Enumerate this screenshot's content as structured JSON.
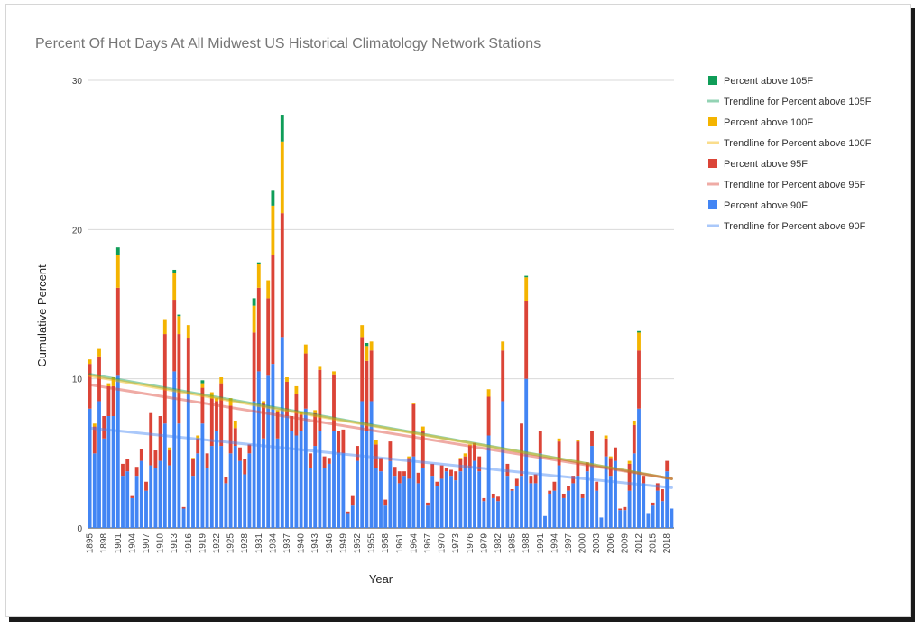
{
  "chart_data": {
    "type": "bar",
    "stacked": true,
    "title": "Percent Of Hot Days At All Midwest US Historical Climatology Network Stations",
    "xlabel": "Year",
    "ylabel": "Cumulative Percent",
    "ylim": [
      0,
      30
    ],
    "yticks": [
      0,
      10,
      20,
      30
    ],
    "grid": true,
    "legend_position": "right",
    "year_start": 1895,
    "year_end": 2019,
    "xtick_labels": [
      "1895",
      "1898",
      "1901",
      "1904",
      "1907",
      "1910",
      "1913",
      "1916",
      "1919",
      "1922",
      "1925",
      "1928",
      "1931",
      "1934",
      "1937",
      "1940",
      "1943",
      "1946",
      "1949",
      "1952",
      "1955",
      "1958",
      "1961",
      "1964",
      "1967",
      "1970",
      "1973",
      "1976",
      "1979",
      "1982",
      "1985",
      "1988",
      "1991",
      "1994",
      "1997",
      "2000",
      "2003",
      "2006",
      "2009",
      "2012",
      "2015",
      "2018"
    ],
    "series": [
      {
        "name": "Percent above 90F",
        "color": "#4285f4",
        "values": [
          8.0,
          5.0,
          8.5,
          6.0,
          7.5,
          7.5,
          10.2,
          3.5,
          3.8,
          2.0,
          3.5,
          4.5,
          2.5,
          4.2,
          4.0,
          4.5,
          7.0,
          4.2,
          10.5,
          7.0,
          1.3,
          9.0,
          3.5,
          5.0,
          7.0,
          4.0,
          5.5,
          6.5,
          5.5,
          3.0,
          5.0,
          5.5,
          4.5,
          3.6,
          5.0,
          8.5,
          10.5,
          6.0,
          10.2,
          11.0,
          6.0,
          12.8,
          7.5,
          6.5,
          6.2,
          6.5,
          8.0,
          4.0,
          5.5,
          6.5,
          4.0,
          4.3,
          6.5,
          5.0,
          5.0,
          1.0,
          1.5,
          4.5,
          8.5,
          6.5,
          8.5,
          4.0,
          3.8,
          1.5,
          4.5,
          3.5,
          3.0,
          3.5,
          3.3,
          4.8,
          3.0,
          4.0,
          1.5,
          3.5,
          2.8,
          3.3,
          3.8,
          3.5,
          3.2,
          3.8,
          4.0,
          4.0,
          4.5,
          3.8,
          1.8,
          6.2,
          2.0,
          1.8,
          8.5,
          3.5,
          2.5,
          2.8,
          3.5,
          10.0,
          3.0,
          3.0,
          5.0,
          0.8,
          2.3,
          2.5,
          4.2,
          2.0,
          2.5,
          3.0,
          3.5,
          2.0,
          3.8,
          5.5,
          2.5,
          0.7,
          4.8,
          3.5,
          4.5,
          1.2,
          1.2,
          2.5,
          5.0,
          8.0,
          3.0,
          1.0,
          1.5,
          2.5,
          1.8,
          3.8,
          1.3
        ]
      },
      {
        "name": "Percent above 95F",
        "color": "#db4437",
        "values": [
          3.0,
          1.8,
          3.0,
          1.5,
          2.0,
          2.0,
          5.9,
          0.8,
          0.8,
          0.2,
          0.6,
          0.8,
          0.6,
          3.5,
          1.2,
          3.0,
          6.0,
          1.0,
          4.8,
          6.0,
          0.1,
          3.7,
          1.1,
          1.0,
          2.4,
          1.0,
          3.2,
          2.0,
          4.2,
          0.4,
          3.2,
          1.2,
          0.9,
          1.0,
          0.6,
          4.6,
          5.6,
          2.4,
          5.2,
          7.3,
          1.8,
          8.3,
          2.3,
          1.0,
          2.8,
          1.1,
          3.7,
          1.0,
          2.2,
          4.1,
          0.8,
          0.4,
          3.8,
          1.5,
          1.6,
          0.1,
          0.7,
          1.0,
          4.3,
          4.7,
          3.4,
          1.6,
          0.9,
          0.4,
          1.3,
          0.6,
          0.8,
          0.3,
          1.4,
          3.5,
          0.7,
          2.5,
          0.2,
          0.8,
          0.3,
          0.9,
          0.2,
          0.4,
          0.6,
          0.8,
          0.8,
          1.5,
          1.2,
          1.0,
          0.2,
          2.6,
          0.3,
          0.3,
          3.4,
          0.8,
          0.1,
          0.5,
          3.5,
          5.2,
          0.5,
          0.6,
          1.5,
          0.0,
          0.2,
          0.6,
          1.6,
          0.3,
          0.3,
          0.5,
          2.3,
          0.3,
          0.6,
          1.0,
          0.6,
          0.0,
          1.2,
          1.2,
          0.9,
          0.1,
          0.2,
          1.8,
          1.9,
          3.9,
          0.5,
          0.0,
          0.2,
          0.5,
          0.8,
          0.7,
          0.0
        ]
      },
      {
        "name": "Percent above 100F",
        "color": "#f4b400",
        "values": [
          0.3,
          0.2,
          0.5,
          0.0,
          0.2,
          0.6,
          2.2,
          0.0,
          0.0,
          0.0,
          0.0,
          0.0,
          0.0,
          0.0,
          0.0,
          0.0,
          1.0,
          0.2,
          1.8,
          1.2,
          0.0,
          0.9,
          0.1,
          0.2,
          0.3,
          0.0,
          0.4,
          0.2,
          0.4,
          0.0,
          0.5,
          0.5,
          0.0,
          0.0,
          0.0,
          1.8,
          1.6,
          0.1,
          1.2,
          3.3,
          0.1,
          4.8,
          0.3,
          0.0,
          0.5,
          0.2,
          0.6,
          0.0,
          0.2,
          0.2,
          0.0,
          0.0,
          0.2,
          0.0,
          0.0,
          0.0,
          0.0,
          0.0,
          0.8,
          1.0,
          0.6,
          0.3,
          0.0,
          0.0,
          0.0,
          0.0,
          0.0,
          0.0,
          0.1,
          0.1,
          0.0,
          0.3,
          0.0,
          0.0,
          0.0,
          0.0,
          0.0,
          0.0,
          0.0,
          0.1,
          0.2,
          0.1,
          0.0,
          0.0,
          0.0,
          0.5,
          0.0,
          0.0,
          0.6,
          0.0,
          0.0,
          0.0,
          0.0,
          1.6,
          0.0,
          0.0,
          0.0,
          0.0,
          0.0,
          0.0,
          0.2,
          0.0,
          0.0,
          0.0,
          0.1,
          0.0,
          0.0,
          0.0,
          0.0,
          0.0,
          0.2,
          0.1,
          0.0,
          0.0,
          0.0,
          0.2,
          0.3,
          1.2,
          0.0,
          0.0,
          0.0,
          0.0,
          0.0,
          0.0,
          0.0
        ]
      },
      {
        "name": "Percent above 105F",
        "color": "#0f9d58",
        "values": [
          0.0,
          0.0,
          0.0,
          0.0,
          0.0,
          0.0,
          0.5,
          0.0,
          0.0,
          0.0,
          0.0,
          0.0,
          0.0,
          0.0,
          0.0,
          0.0,
          0.0,
          0.0,
          0.2,
          0.1,
          0.0,
          0.0,
          0.0,
          0.0,
          0.2,
          0.0,
          0.0,
          0.0,
          0.0,
          0.0,
          0.0,
          0.0,
          0.0,
          0.0,
          0.0,
          0.5,
          0.1,
          0.0,
          0.0,
          1.0,
          0.0,
          1.8,
          0.0,
          0.0,
          0.0,
          0.0,
          0.0,
          0.0,
          0.0,
          0.0,
          0.0,
          0.0,
          0.0,
          0.0,
          0.0,
          0.0,
          0.0,
          0.0,
          0.0,
          0.2,
          0.0,
          0.0,
          0.0,
          0.0,
          0.0,
          0.0,
          0.0,
          0.0,
          0.0,
          0.0,
          0.0,
          0.0,
          0.0,
          0.0,
          0.0,
          0.0,
          0.0,
          0.0,
          0.0,
          0.0,
          0.0,
          0.0,
          0.0,
          0.0,
          0.0,
          0.0,
          0.0,
          0.0,
          0.0,
          0.0,
          0.0,
          0.0,
          0.0,
          0.1,
          0.0,
          0.0,
          0.0,
          0.0,
          0.0,
          0.0,
          0.0,
          0.0,
          0.0,
          0.0,
          0.0,
          0.0,
          0.0,
          0.0,
          0.0,
          0.0,
          0.0,
          0.0,
          0.0,
          0.0,
          0.0,
          0.0,
          0.0,
          0.1,
          0.0,
          0.0,
          0.0,
          0.0,
          0.0,
          0.0,
          0.0
        ]
      }
    ],
    "trendlines": [
      {
        "name": "Trendline for Percent above 105F",
        "color": "#0f9d58",
        "start": 10.3,
        "end": 3.3
      },
      {
        "name": "Trendline for Percent above 100F",
        "color": "#f4b400",
        "start": 10.2,
        "end": 3.3
      },
      {
        "name": "Trendline for Percent above 95F",
        "color": "#db4437",
        "start": 9.6,
        "end": 3.3
      },
      {
        "name": "Trendline for Percent above 90F",
        "color": "#4285f4",
        "start": 6.7,
        "end": 2.7
      }
    ],
    "legend": [
      {
        "label": "Percent above 105F",
        "kind": "box",
        "color": "#0f9d58"
      },
      {
        "label": "Trendline for Percent above 105F",
        "kind": "line",
        "color": "#0f9d58"
      },
      {
        "label": "Percent above 100F",
        "kind": "box",
        "color": "#f4b400"
      },
      {
        "label": "Trendline for Percent above 100F",
        "kind": "line",
        "color": "#f4b400"
      },
      {
        "label": "Percent above 95F",
        "kind": "box",
        "color": "#db4437"
      },
      {
        "label": "Trendline for Percent above 95F",
        "kind": "line",
        "color": "#db4437"
      },
      {
        "label": "Percent above 90F",
        "kind": "box",
        "color": "#4285f4"
      },
      {
        "label": "Trendline for Percent above 90F",
        "kind": "line",
        "color": "#4285f4"
      }
    ]
  }
}
